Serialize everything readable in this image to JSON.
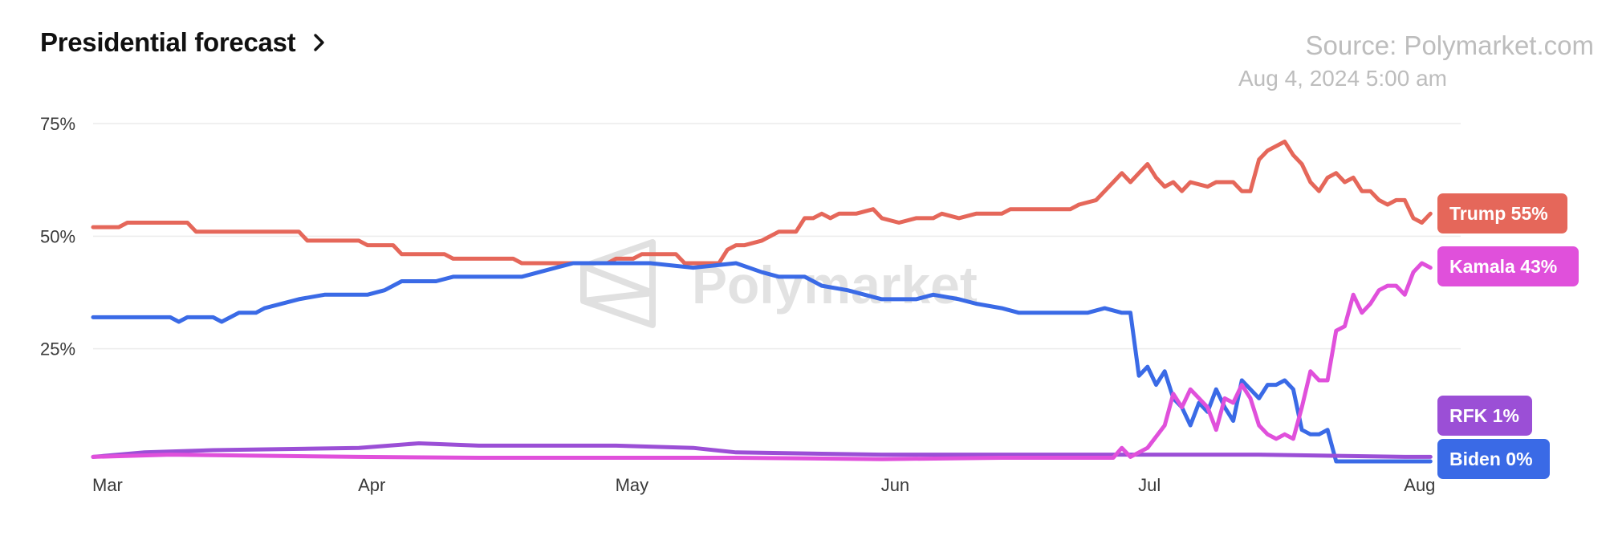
{
  "header": {
    "title": "Presidential forecast",
    "source": "Source: Polymarket.com",
    "timestamp": "Aug 4, 2024 5:00 am"
  },
  "watermark": {
    "text": "Polymarket"
  },
  "icons": {
    "title_link": "chevron-right-icon",
    "watermark_logo": "polymarket-logo-icon"
  },
  "chart_data": {
    "type": "line",
    "title": "Presidential forecast",
    "xlabel": "",
    "ylabel": "",
    "x_range": [
      "2024-03-01",
      "2024-08-05"
    ],
    "ylim": [
      0,
      75
    ],
    "y_ticks": [
      25,
      50,
      75
    ],
    "y_tick_labels": [
      "25%",
      "50%",
      "75%"
    ],
    "x_ticks": [
      {
        "date": "2024-03-01",
        "label": "Mar"
      },
      {
        "date": "2024-04-01",
        "label": "Apr"
      },
      {
        "date": "2024-05-01",
        "label": "May"
      },
      {
        "date": "2024-06-01",
        "label": "Jun"
      },
      {
        "date": "2024-07-01",
        "label": "Jul"
      },
      {
        "date": "2024-08-01",
        "label": "Aug"
      }
    ],
    "grid": true,
    "legend": "right end labels",
    "series": [
      {
        "name": "Trump",
        "color": "#e5675a",
        "label": "Trump 55%",
        "points": [
          [
            "2024-03-01",
            52
          ],
          [
            "2024-03-04",
            52
          ],
          [
            "2024-03-05",
            53
          ],
          [
            "2024-03-12",
            53
          ],
          [
            "2024-03-13",
            51
          ],
          [
            "2024-03-25",
            51
          ],
          [
            "2024-03-26",
            49
          ],
          [
            "2024-04-01",
            49
          ],
          [
            "2024-04-02",
            48
          ],
          [
            "2024-04-05",
            48
          ],
          [
            "2024-04-06",
            46
          ],
          [
            "2024-04-11",
            46
          ],
          [
            "2024-04-12",
            45
          ],
          [
            "2024-04-19",
            45
          ],
          [
            "2024-04-20",
            44
          ],
          [
            "2024-04-27",
            44
          ],
          [
            "2024-04-28",
            44
          ],
          [
            "2024-04-30",
            44
          ],
          [
            "2024-05-01",
            45
          ],
          [
            "2024-05-03",
            45
          ],
          [
            "2024-05-04",
            46
          ],
          [
            "2024-05-08",
            46
          ],
          [
            "2024-05-09",
            44
          ],
          [
            "2024-05-13",
            44
          ],
          [
            "2024-05-14",
            47
          ],
          [
            "2024-05-15",
            48
          ],
          [
            "2024-05-16",
            48
          ],
          [
            "2024-05-18",
            49
          ],
          [
            "2024-05-20",
            51
          ],
          [
            "2024-05-22",
            51
          ],
          [
            "2024-05-23",
            54
          ],
          [
            "2024-05-24",
            54
          ],
          [
            "2024-05-25",
            55
          ],
          [
            "2024-05-26",
            54
          ],
          [
            "2024-05-27",
            55
          ],
          [
            "2024-05-29",
            55
          ],
          [
            "2024-05-31",
            56
          ],
          [
            "2024-06-01",
            54
          ],
          [
            "2024-06-03",
            53
          ],
          [
            "2024-06-05",
            54
          ],
          [
            "2024-06-07",
            54
          ],
          [
            "2024-06-08",
            55
          ],
          [
            "2024-06-10",
            54
          ],
          [
            "2024-06-12",
            55
          ],
          [
            "2024-06-15",
            55
          ],
          [
            "2024-06-16",
            56
          ],
          [
            "2024-06-20",
            56
          ],
          [
            "2024-06-21",
            56
          ],
          [
            "2024-06-23",
            56
          ],
          [
            "2024-06-24",
            57
          ],
          [
            "2024-06-26",
            58
          ],
          [
            "2024-06-27",
            60
          ],
          [
            "2024-06-28",
            62
          ],
          [
            "2024-06-29",
            64
          ],
          [
            "2024-06-30",
            62
          ],
          [
            "2024-07-01",
            64
          ],
          [
            "2024-07-02",
            66
          ],
          [
            "2024-07-03",
            63
          ],
          [
            "2024-07-04",
            61
          ],
          [
            "2024-07-05",
            62
          ],
          [
            "2024-07-06",
            60
          ],
          [
            "2024-07-07",
            62
          ],
          [
            "2024-07-09",
            61
          ],
          [
            "2024-07-10",
            62
          ],
          [
            "2024-07-12",
            62
          ],
          [
            "2024-07-13",
            60
          ],
          [
            "2024-07-14",
            60
          ],
          [
            "2024-07-15",
            67
          ],
          [
            "2024-07-16",
            69
          ],
          [
            "2024-07-18",
            71
          ],
          [
            "2024-07-19",
            68
          ],
          [
            "2024-07-20",
            66
          ],
          [
            "2024-07-21",
            62
          ],
          [
            "2024-07-22",
            60
          ],
          [
            "2024-07-23",
            63
          ],
          [
            "2024-07-24",
            64
          ],
          [
            "2024-07-25",
            62
          ],
          [
            "2024-07-26",
            63
          ],
          [
            "2024-07-27",
            60
          ],
          [
            "2024-07-28",
            60
          ],
          [
            "2024-07-29",
            58
          ],
          [
            "2024-07-30",
            57
          ],
          [
            "2024-07-31",
            58
          ],
          [
            "2024-08-01",
            58
          ],
          [
            "2024-08-02",
            54
          ],
          [
            "2024-08-03",
            53
          ],
          [
            "2024-08-04",
            55
          ]
        ]
      },
      {
        "name": "Kamala",
        "color": "#e050db",
        "label": "Kamala 43%",
        "points": [
          [
            "2024-03-01",
            1
          ],
          [
            "2024-03-10",
            1.5
          ],
          [
            "2024-04-01",
            1
          ],
          [
            "2024-04-15",
            0.8
          ],
          [
            "2024-05-01",
            0.8
          ],
          [
            "2024-05-15",
            0.8
          ],
          [
            "2024-06-01",
            0.5
          ],
          [
            "2024-06-15",
            0.8
          ],
          [
            "2024-06-28",
            0.8
          ],
          [
            "2024-06-29",
            3
          ],
          [
            "2024-06-30",
            1
          ],
          [
            "2024-07-01",
            2
          ],
          [
            "2024-07-02",
            3
          ],
          [
            "2024-07-04",
            8
          ],
          [
            "2024-07-05",
            15
          ],
          [
            "2024-07-06",
            12
          ],
          [
            "2024-07-07",
            16
          ],
          [
            "2024-07-08",
            14
          ],
          [
            "2024-07-09",
            12
          ],
          [
            "2024-07-10",
            7
          ],
          [
            "2024-07-11",
            14
          ],
          [
            "2024-07-12",
            13
          ],
          [
            "2024-07-13",
            17
          ],
          [
            "2024-07-14",
            14
          ],
          [
            "2024-07-15",
            8
          ],
          [
            "2024-07-16",
            6
          ],
          [
            "2024-07-17",
            5
          ],
          [
            "2024-07-18",
            6
          ],
          [
            "2024-07-19",
            5
          ],
          [
            "2024-07-20",
            12
          ],
          [
            "2024-07-21",
            20
          ],
          [
            "2024-07-22",
            18
          ],
          [
            "2024-07-23",
            18
          ],
          [
            "2024-07-24",
            29
          ],
          [
            "2024-07-25",
            30
          ],
          [
            "2024-07-26",
            37
          ],
          [
            "2024-07-27",
            33
          ],
          [
            "2024-07-28",
            35
          ],
          [
            "2024-07-29",
            38
          ],
          [
            "2024-07-30",
            39
          ],
          [
            "2024-07-31",
            39
          ],
          [
            "2024-08-01",
            37
          ],
          [
            "2024-08-02",
            42
          ],
          [
            "2024-08-03",
            44
          ],
          [
            "2024-08-04",
            43
          ]
        ]
      },
      {
        "name": "RFK",
        "color": "#9b4fd6",
        "label": "RFK 1%",
        "points": [
          [
            "2024-03-01",
            1
          ],
          [
            "2024-03-07",
            2
          ],
          [
            "2024-03-15",
            2.5
          ],
          [
            "2024-04-01",
            3
          ],
          [
            "2024-04-08",
            4
          ],
          [
            "2024-04-15",
            3.5
          ],
          [
            "2024-05-01",
            3.5
          ],
          [
            "2024-05-10",
            3
          ],
          [
            "2024-05-15",
            2
          ],
          [
            "2024-06-01",
            1.5
          ],
          [
            "2024-06-15",
            1.5
          ],
          [
            "2024-07-01",
            1.5
          ],
          [
            "2024-07-15",
            1.5
          ],
          [
            "2024-08-01",
            1
          ],
          [
            "2024-08-04",
            1
          ]
        ]
      },
      {
        "name": "Biden",
        "color": "#3a6ae6",
        "label": "Biden 0%",
        "points": [
          [
            "2024-03-01",
            32
          ],
          [
            "2024-03-10",
            32
          ],
          [
            "2024-03-11",
            31
          ],
          [
            "2024-03-12",
            32
          ],
          [
            "2024-03-15",
            32
          ],
          [
            "2024-03-16",
            31
          ],
          [
            "2024-03-18",
            33
          ],
          [
            "2024-03-20",
            33
          ],
          [
            "2024-03-21",
            34
          ],
          [
            "2024-03-25",
            36
          ],
          [
            "2024-03-28",
            37
          ],
          [
            "2024-04-02",
            37
          ],
          [
            "2024-04-04",
            38
          ],
          [
            "2024-04-06",
            40
          ],
          [
            "2024-04-10",
            40
          ],
          [
            "2024-04-12",
            41
          ],
          [
            "2024-04-20",
            41
          ],
          [
            "2024-04-24",
            43
          ],
          [
            "2024-04-26",
            44
          ],
          [
            "2024-05-01",
            44
          ],
          [
            "2024-05-05",
            44
          ],
          [
            "2024-05-10",
            43
          ],
          [
            "2024-05-15",
            44
          ],
          [
            "2024-05-18",
            42
          ],
          [
            "2024-05-20",
            41
          ],
          [
            "2024-05-23",
            41
          ],
          [
            "2024-05-25",
            39
          ],
          [
            "2024-05-28",
            38
          ],
          [
            "2024-06-01",
            36
          ],
          [
            "2024-06-05",
            36
          ],
          [
            "2024-06-07",
            37
          ],
          [
            "2024-06-10",
            36
          ],
          [
            "2024-06-12",
            35
          ],
          [
            "2024-06-15",
            34
          ],
          [
            "2024-06-17",
            33
          ],
          [
            "2024-06-20",
            33
          ],
          [
            "2024-06-25",
            33
          ],
          [
            "2024-06-27",
            34
          ],
          [
            "2024-06-29",
            33
          ],
          [
            "2024-06-30",
            33
          ],
          [
            "2024-07-01",
            19
          ],
          [
            "2024-07-02",
            21
          ],
          [
            "2024-07-03",
            17
          ],
          [
            "2024-07-04",
            20
          ],
          [
            "2024-07-05",
            14
          ],
          [
            "2024-07-06",
            12
          ],
          [
            "2024-07-07",
            8
          ],
          [
            "2024-07-08",
            13
          ],
          [
            "2024-07-09",
            11
          ],
          [
            "2024-07-10",
            16
          ],
          [
            "2024-07-11",
            12
          ],
          [
            "2024-07-12",
            9
          ],
          [
            "2024-07-13",
            18
          ],
          [
            "2024-07-14",
            16
          ],
          [
            "2024-07-15",
            14
          ],
          [
            "2024-07-16",
            17
          ],
          [
            "2024-07-17",
            17
          ],
          [
            "2024-07-18",
            18
          ],
          [
            "2024-07-19",
            16
          ],
          [
            "2024-07-20",
            7
          ],
          [
            "2024-07-21",
            6
          ],
          [
            "2024-07-22",
            6
          ],
          [
            "2024-07-23",
            7
          ],
          [
            "2024-07-24",
            0
          ],
          [
            "2024-08-01",
            0
          ],
          [
            "2024-08-04",
            0
          ]
        ]
      }
    ]
  }
}
